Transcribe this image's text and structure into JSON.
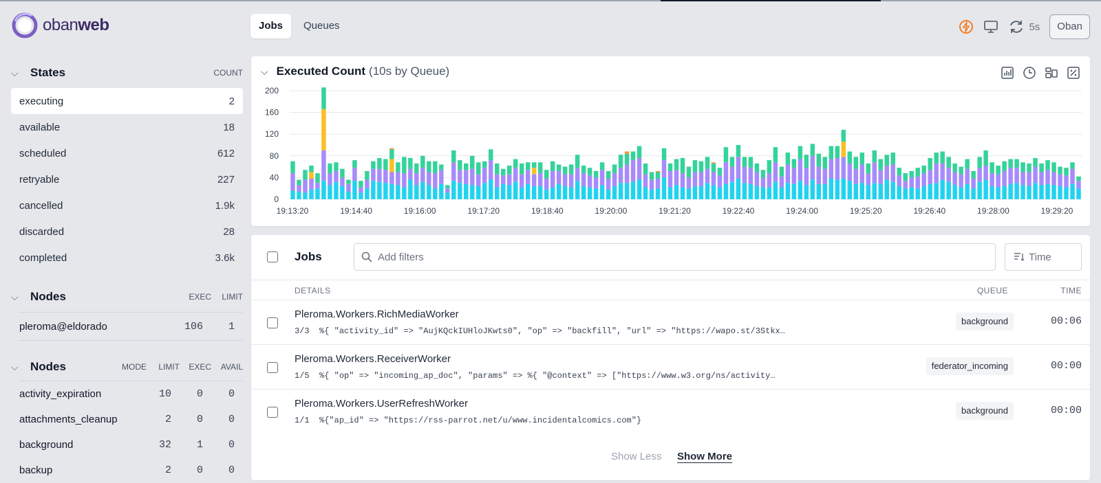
{
  "brand": {
    "light": "oban",
    "bold": "web"
  },
  "nav": {
    "tabs": [
      {
        "label": "Jobs",
        "active": true
      },
      {
        "label": "Queues",
        "active": false
      }
    ]
  },
  "header": {
    "refresh_label": "5s",
    "instance_button": "Oban",
    "icons": [
      "lightning-icon",
      "monitor-icon",
      "refresh-icon"
    ]
  },
  "sidebar": {
    "states": {
      "title": "States",
      "count_header": "COUNT",
      "items": [
        {
          "name": "executing",
          "count": "2",
          "active": true
        },
        {
          "name": "available",
          "count": "18"
        },
        {
          "name": "scheduled",
          "count": "612"
        },
        {
          "name": "retryable",
          "count": "227"
        },
        {
          "name": "cancelled",
          "count": "1.9k"
        },
        {
          "name": "discarded",
          "count": "28"
        },
        {
          "name": "completed",
          "count": "3.6k"
        }
      ]
    },
    "nodes": {
      "title": "Nodes",
      "exec_header": "EXEC",
      "limit_header": "LIMIT",
      "items": [
        {
          "name": "pleroma@eldorado",
          "exec": "106",
          "limit": "1"
        }
      ]
    },
    "queues": {
      "title": "Nodes",
      "headers": {
        "mode": "MODE",
        "limit": "LIMIT",
        "exec": "EXEC",
        "avail": "AVAIL"
      },
      "items": [
        {
          "name": "activity_expiration",
          "limit": "10",
          "exec": "0",
          "avail": "0"
        },
        {
          "name": "attachments_cleanup",
          "limit": "2",
          "exec": "0",
          "avail": "0"
        },
        {
          "name": "background",
          "limit": "32",
          "exec": "1",
          "avail": "0"
        },
        {
          "name": "backup",
          "limit": "2",
          "exec": "0",
          "avail": "0"
        }
      ]
    }
  },
  "chart": {
    "title": "Executed Count",
    "subtitle": "(10s by Queue)"
  },
  "chart_data": {
    "type": "bar",
    "stacked": true,
    "ylim": [
      0,
      200
    ],
    "yticks": [
      0,
      40,
      80,
      120,
      160,
      200
    ],
    "xtick_labels": [
      "19:13:20",
      "19:14:40",
      "19:16:00",
      "19:17:20",
      "19:18:40",
      "19:20:00",
      "19:21:20",
      "19:22:40",
      "19:24:00",
      "19:25:20",
      "19:26:40",
      "19:28:00",
      "19:29:20"
    ],
    "grid": true,
    "colors": [
      "#22d3ee",
      "#a78bfa",
      "#fbbf24",
      "#34d399",
      "#fb923c"
    ],
    "series": [
      {
        "values": [
          16,
          14,
          12,
          18,
          20,
          34,
          26,
          32,
          24,
          14,
          34,
          12,
          20,
          34,
          32,
          30,
          28,
          26,
          22,
          36,
          26,
          32,
          26,
          20,
          28,
          12,
          34,
          30,
          28,
          26,
          24,
          30,
          36,
          22,
          28,
          26,
          32,
          22,
          28,
          24,
          24,
          18,
          22,
          28,
          24,
          22,
          34,
          24,
          22,
          20,
          26,
          18,
          24,
          30,
          30,
          32,
          36,
          22,
          18,
          20,
          40,
          22,
          26,
          22,
          20,
          24,
          24,
          30,
          26,
          22,
          28,
          32,
          38,
          30,
          28,
          24,
          22,
          22,
          32,
          22,
          30,
          28,
          34,
          26,
          36,
          28,
          28,
          38,
          36,
          38,
          34,
          28,
          30,
          26,
          30,
          28,
          36,
          32,
          24,
          20,
          22,
          20,
          24,
          28,
          30,
          36,
          32,
          26,
          22,
          28,
          20,
          32,
          36,
          24,
          22,
          24,
          28,
          30,
          26,
          24,
          30,
          26,
          28,
          26,
          24,
          22,
          28,
          20
        ]
      },
      {
        "values": [
          32,
          12,
          24,
          20,
          10,
          56,
          22,
          20,
          16,
          14,
          24,
          10,
          16,
          22,
          24,
          24,
          22,
          24,
          26,
          20,
          22,
          26,
          24,
          28,
          26,
          8,
          34,
          24,
          26,
          30,
          22,
          28,
          36,
          24,
          16,
          20,
          26,
          24,
          26,
          22,
          24,
          20,
          30,
          24,
          22,
          24,
          24,
          24,
          22,
          20,
          28,
          20,
          24,
          28,
          34,
          40,
          40,
          24,
          18,
          18,
          32,
          30,
          28,
          26,
          20,
          26,
          26,
          26,
          24,
          22,
          40,
          28,
          40,
          30,
          30,
          26,
          18,
          26,
          36,
          20,
          34,
          30,
          40,
          32,
          44,
          32,
          28,
          36,
          40,
          40,
          32,
          28,
          34,
          22,
          38,
          26,
          26,
          32,
          20,
          14,
          18,
          22,
          24,
          26,
          36,
          30,
          26,
          24,
          24,
          28,
          18,
          26,
          26,
          24,
          24,
          28,
          30,
          28,
          24,
          26,
          30,
          24,
          26,
          24,
          22,
          22,
          28,
          14
        ]
      },
      {
        "values": [
          0,
          0,
          0,
          12,
          0,
          76,
          0,
          0,
          0,
          0,
          0,
          0,
          0,
          0,
          0,
          0,
          24,
          0,
          0,
          0,
          0,
          0,
          0,
          0,
          0,
          0,
          0,
          0,
          0,
          0,
          0,
          0,
          0,
          0,
          0,
          0,
          0,
          0,
          0,
          12,
          0,
          0,
          0,
          0,
          0,
          0,
          0,
          0,
          0,
          0,
          0,
          0,
          0,
          0,
          0,
          0,
          0,
          0,
          0,
          0,
          0,
          0,
          0,
          0,
          0,
          0,
          0,
          0,
          0,
          0,
          0,
          0,
          0,
          0,
          0,
          0,
          0,
          0,
          0,
          0,
          0,
          0,
          0,
          0,
          0,
          0,
          0,
          0,
          0,
          28,
          0,
          0,
          0,
          0,
          0,
          0,
          0,
          0,
          0,
          0,
          0,
          0,
          0,
          0,
          0,
          0,
          0,
          0,
          0,
          0,
          0,
          0,
          0,
          0,
          0,
          0,
          0,
          0,
          0,
          0,
          0,
          0,
          0,
          0,
          0,
          0,
          0,
          0
        ]
      },
      {
        "values": [
          22,
          10,
          18,
          12,
          18,
          40,
          18,
          16,
          16,
          8,
          14,
          12,
          16,
          14,
          20,
          20,
          18,
          18,
          30,
          20,
          18,
          22,
          20,
          22,
          10,
          6,
          22,
          18,
          12,
          24,
          22,
          12,
          20,
          20,
          12,
          16,
          16,
          20,
          14,
          10,
          20,
          16,
          18,
          12,
          14,
          18,
          24,
          14,
          14,
          12,
          14,
          14,
          16,
          24,
          20,
          16,
          22,
          20,
          14,
          12,
          22,
          14,
          20,
          28,
          20,
          22,
          20,
          22,
          16,
          14,
          28,
          18,
          22,
          18,
          20,
          16,
          14,
          24,
          28,
          18,
          22,
          16,
          24,
          24,
          22,
          24,
          22,
          24,
          22,
          22,
          22,
          22,
          22,
          18,
          22,
          20,
          20,
          22,
          14,
          14,
          12,
          16,
          14,
          22,
          20,
          22,
          20,
          16,
          14,
          18,
          14,
          20,
          28,
          20,
          16,
          18,
          16,
          16,
          18,
          16,
          16,
          16,
          18,
          18,
          14,
          14,
          12,
          8
        ]
      },
      {
        "values": [
          0,
          0,
          0,
          0,
          0,
          0,
          0,
          0,
          0,
          0,
          0,
          0,
          0,
          0,
          0,
          0,
          2,
          0,
          0,
          0,
          0,
          0,
          0,
          0,
          0,
          0,
          0,
          0,
          0,
          0,
          0,
          0,
          0,
          0,
          0,
          0,
          0,
          0,
          0,
          0,
          0,
          0,
          0,
          0,
          0,
          0,
          0,
          0,
          0,
          0,
          0,
          0,
          0,
          0,
          4,
          0,
          0,
          0,
          0,
          2,
          0,
          0,
          0,
          0,
          0,
          0,
          0,
          0,
          2,
          0,
          0,
          0,
          0,
          0,
          0,
          0,
          0,
          0,
          0,
          0,
          0,
          0,
          0,
          0,
          0,
          0,
          0,
          0,
          0,
          0,
          0,
          0,
          0,
          0,
          0,
          0,
          0,
          0,
          0,
          0,
          0,
          0,
          0,
          0,
          0,
          0,
          0,
          0,
          0,
          0,
          0,
          0,
          0,
          0,
          0,
          0,
          0,
          0,
          0,
          0,
          0,
          0,
          0,
          0,
          0,
          0,
          0,
          0
        ]
      }
    ]
  },
  "jobs": {
    "title": "Jobs",
    "filter_placeholder": "Add filters",
    "time_label": "Time",
    "columns": {
      "details": "DETAILS",
      "queue": "QUEUE",
      "time": "TIME"
    },
    "rows": [
      {
        "worker": "Pleroma.Workers.RichMediaWorker",
        "attempt": "3/3",
        "args": "%{ \"activity_id\" => \"AujKQckIUHloJKwts0\", \"op\" => \"backfill\", \"url\" => \"https://wapo.st/3Stkx…",
        "queue": "background",
        "time": "00:06"
      },
      {
        "worker": "Pleroma.Workers.ReceiverWorker",
        "attempt": "1/5",
        "args": "%{ \"op\" => \"incoming_ap_doc\", \"params\" => %{ \"@context\" => [\"https://www.w3.org/ns/activity…",
        "queue": "federator_incoming",
        "time": "00:00"
      },
      {
        "worker": "Pleroma.Workers.UserRefreshWorker",
        "attempt": "1/1",
        "args": "%{\"ap_id\" => \"https://rss-parrot.net/u/www.incidentalcomics.com\"}",
        "queue": "background",
        "time": "00:00"
      }
    ],
    "show_less": "Show Less",
    "show_more": "Show More"
  }
}
